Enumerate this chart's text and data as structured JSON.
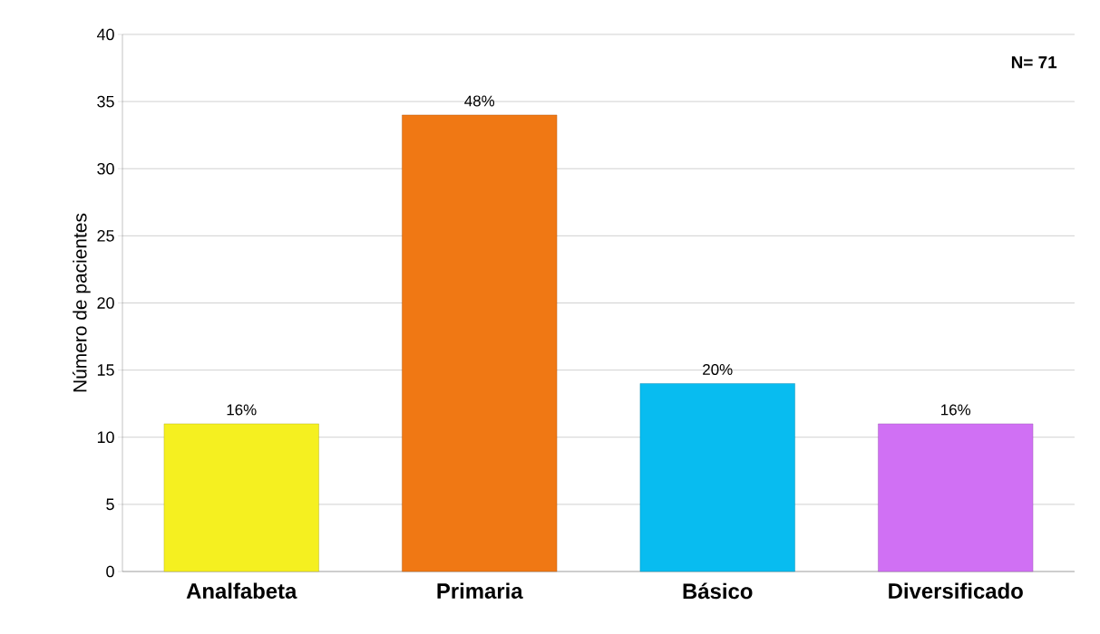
{
  "chart_data": {
    "type": "bar",
    "ylabel": "Número de pacientes",
    "categories": [
      "Analfabeta",
      "Primaria",
      "Básico",
      "Diversificado"
    ],
    "values": [
      11,
      34,
      14,
      11
    ],
    "colors": [
      "#f5f020",
      "#f07814",
      "#08bcf0",
      "#d070f4"
    ],
    "annotations": [
      {
        "text": "16%",
        "x": "Analfabeta",
        "y": 11
      },
      {
        "text": "48%",
        "x": "Primaria",
        "y": 34
      },
      {
        "text": "20%",
        "x": "Básico",
        "y": 14
      },
      {
        "text": "16%",
        "x": "Diversificado",
        "y": 11
      },
      "N= 71"
    ],
    "ylim": [
      0,
      40
    ],
    "yticks": [
      0,
      5,
      10,
      15,
      20,
      25,
      30,
      35,
      40
    ],
    "grid": "y"
  }
}
